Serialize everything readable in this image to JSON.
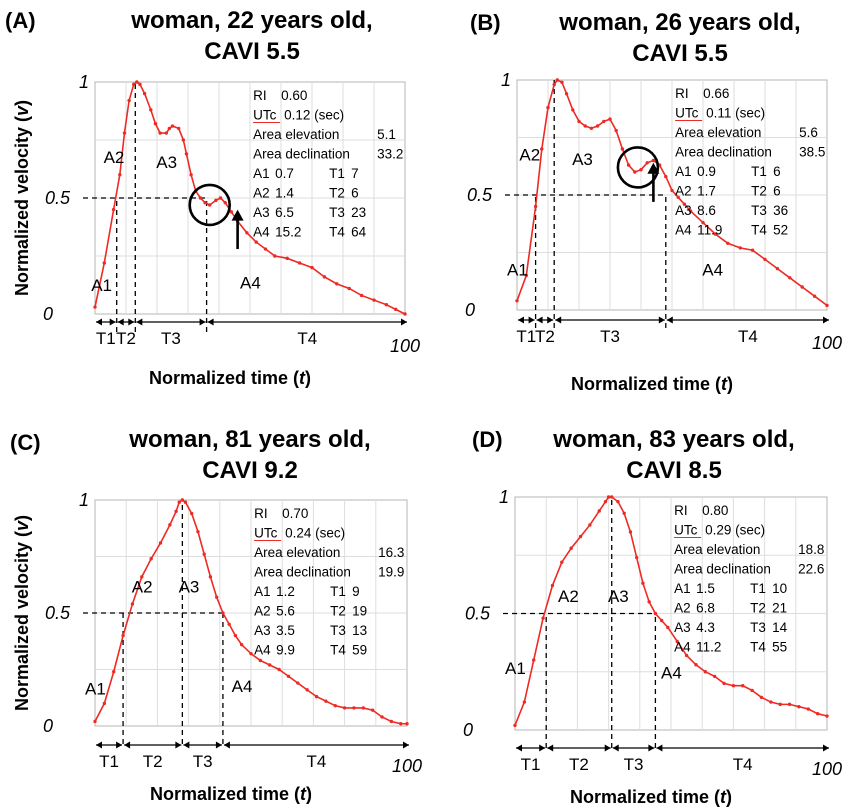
{
  "chart_data": [
    {
      "type": "line",
      "panel_label": "(A)",
      "title": [
        "woman, 22 years old,",
        "CAVI 5.5"
      ],
      "xlabel": "Normalized time",
      "xlabel_var": "t",
      "ylabel": "Normalized velocity",
      "ylabel_var": "v",
      "xlim": [
        0,
        100
      ],
      "ylim": [
        0,
        1
      ],
      "ytick_labels": [
        "0",
        "0.5",
        "1"
      ],
      "xtick_label_end": "100",
      "grid": true,
      "line_color": "#ee2a24",
      "series": [
        {
          "x": [
            0,
            3,
            6,
            8,
            9.5,
            11,
            12.5,
            13.5,
            14.5,
            16,
            18,
            19.5,
            21,
            23,
            24,
            25,
            27,
            28.5,
            29.5,
            31,
            32.5,
            34,
            35.5,
            37,
            39,
            40.5,
            42,
            44,
            46,
            49,
            52,
            55,
            58,
            62,
            66,
            70,
            74,
            78,
            82,
            86,
            90,
            94,
            97,
            100
          ],
          "y": [
            0.03,
            0.22,
            0.45,
            0.6,
            0.78,
            0.92,
            0.99,
            1.0,
            0.99,
            0.95,
            0.88,
            0.82,
            0.78,
            0.78,
            0.8,
            0.81,
            0.8,
            0.75,
            0.69,
            0.6,
            0.53,
            0.5,
            0.48,
            0.47,
            0.49,
            0.5,
            0.48,
            0.44,
            0.4,
            0.35,
            0.31,
            0.28,
            0.25,
            0.24,
            0.22,
            0.2,
            0.16,
            0.13,
            0.11,
            0.08,
            0.06,
            0.04,
            0.02,
            0.0
          ]
        }
      ],
      "info": {
        "RI_label": "RI",
        "RI": "0.60",
        "UTc_label": "UTc",
        "UTc": "0.12 (sec)",
        "elev_label": "Area elevation",
        "elev": "5.1",
        "decl_label": "Area declination",
        "decl": "33.2",
        "A": [
          {
            "l": "A1",
            "v": "0.7"
          },
          {
            "l": "A2",
            "v": "1.4"
          },
          {
            "l": "A3",
            "v": "6.5"
          },
          {
            "l": "A4",
            "v": "15.2"
          }
        ],
        "T": [
          {
            "l": "T1",
            "v": "7"
          },
          {
            "l": "T2",
            "v": "6"
          },
          {
            "l": "T3",
            "v": "23"
          },
          {
            "l": "T4",
            "v": "64"
          }
        ]
      },
      "region_labels": [
        "A1",
        "A2",
        "A3",
        "A4"
      ],
      "t_labels": [
        "T1",
        "T2",
        "T3",
        "T4"
      ],
      "t_boundaries": [
        0,
        7,
        13,
        36,
        100
      ],
      "half_velocity_level": 0.5,
      "peak_time": 13,
      "region_label_pos": [
        [
          2,
          0.1
        ],
        [
          6,
          0.65
        ],
        [
          23,
          0.63
        ],
        [
          50,
          0.11
        ]
      ],
      "marker_circle": {
        "x": 37,
        "y": 0.47
      },
      "marker_arrow": {
        "x": 46,
        "y_from": 0.28,
        "y_to": 0.45
      }
    },
    {
      "type": "line",
      "panel_label": "(B)",
      "title": [
        "woman, 26 years old,",
        "CAVI 5.5"
      ],
      "xlabel": "Normalized time",
      "xlabel_var": "t",
      "ylabel": "",
      "xlim": [
        0,
        100
      ],
      "ylim": [
        0,
        1
      ],
      "ytick_labels": [
        "0",
        "0.5",
        "1"
      ],
      "xtick_label_end": "100",
      "grid": true,
      "line_color": "#ee2a24",
      "series": [
        {
          "x": [
            0,
            3,
            6,
            8,
            10,
            12,
            13,
            14.5,
            16,
            18,
            20,
            22,
            24,
            26,
            28,
            30,
            32,
            34,
            36,
            38,
            40,
            42,
            44,
            46,
            48,
            50,
            52,
            54,
            56,
            60,
            64,
            68,
            72,
            76,
            80,
            84,
            88,
            92,
            96,
            100
          ],
          "y": [
            0.04,
            0.15,
            0.45,
            0.7,
            0.88,
            0.98,
            1.0,
            0.99,
            0.94,
            0.87,
            0.82,
            0.8,
            0.79,
            0.8,
            0.82,
            0.83,
            0.78,
            0.7,
            0.63,
            0.6,
            0.61,
            0.64,
            0.65,
            0.63,
            0.58,
            0.52,
            0.49,
            0.46,
            0.43,
            0.38,
            0.33,
            0.29,
            0.27,
            0.26,
            0.22,
            0.18,
            0.14,
            0.1,
            0.06,
            0.02
          ]
        }
      ],
      "info": {
        "RI_label": "RI",
        "RI": "0.66",
        "UTc_label": "UTc",
        "UTc": "0.11 (sec)",
        "elev_label": "Area elevation",
        "elev": "5.6",
        "decl_label": "Area declination",
        "decl": "38.5",
        "A": [
          {
            "l": "A1",
            "v": "0.9"
          },
          {
            "l": "A2",
            "v": "1.7"
          },
          {
            "l": "A3",
            "v": "8.6"
          },
          {
            "l": "A4",
            "v": "11.9"
          }
        ],
        "T": [
          {
            "l": "T1",
            "v": "6"
          },
          {
            "l": "T2",
            "v": "6"
          },
          {
            "l": "T3",
            "v": "36"
          },
          {
            "l": "T4",
            "v": "52"
          }
        ]
      },
      "region_labels": [
        "A1",
        "A2",
        "A3",
        "A4"
      ],
      "t_labels": [
        "T1",
        "T2",
        "T3",
        "T4"
      ],
      "t_boundaries": [
        0,
        6,
        12,
        48,
        100
      ],
      "half_velocity_level": 0.5,
      "peak_time": 12,
      "region_label_pos": [
        [
          0,
          0.15
        ],
        [
          4,
          0.65
        ],
        [
          21,
          0.63
        ],
        [
          63,
          0.15
        ]
      ],
      "marker_circle": {
        "x": 39,
        "y": 0.62
      },
      "marker_arrow": {
        "x": 44,
        "y_from": 0.47,
        "y_to": 0.64
      }
    },
    {
      "type": "line",
      "panel_label": "(C)",
      "title": [
        "woman, 81 years old,",
        "CAVI 9.2"
      ],
      "xlabel": "Normalized time",
      "xlabel_var": "t",
      "ylabel": "Normalized velocity",
      "ylabel_var": "v",
      "xlim": [
        0,
        100
      ],
      "ylim": [
        0,
        1
      ],
      "ytick_labels": [
        "0",
        "0.5",
        "1"
      ],
      "xtick_label_end": "100",
      "grid": true,
      "line_color": "#ee2a24",
      "series": [
        {
          "x": [
            0,
            3,
            6,
            9,
            12,
            15,
            18,
            21,
            24,
            26,
            27,
            28,
            29,
            31,
            33,
            35,
            37,
            39,
            41,
            43,
            45,
            47,
            50,
            53,
            56,
            59,
            62,
            65,
            68,
            71,
            74,
            77,
            80,
            83,
            86,
            89,
            92,
            95,
            98,
            100
          ],
          "y": [
            0.02,
            0.1,
            0.24,
            0.4,
            0.54,
            0.66,
            0.74,
            0.81,
            0.89,
            0.95,
            0.99,
            1.0,
            0.99,
            0.94,
            0.86,
            0.76,
            0.66,
            0.57,
            0.5,
            0.45,
            0.4,
            0.36,
            0.32,
            0.29,
            0.27,
            0.25,
            0.22,
            0.19,
            0.16,
            0.13,
            0.11,
            0.09,
            0.08,
            0.08,
            0.08,
            0.07,
            0.04,
            0.02,
            0.01,
            0.01
          ]
        }
      ],
      "info": {
        "RI_label": "RI",
        "RI": "0.70",
        "UTc_label": "UTc",
        "UTc": "0.24 (sec)",
        "elev_label": "Area elevation",
        "elev": "16.3",
        "decl_label": "Area declination",
        "decl": "19.9",
        "A": [
          {
            "l": "A1",
            "v": "1.2"
          },
          {
            "l": "A2",
            "v": "5.6"
          },
          {
            "l": "A3",
            "v": "3.5"
          },
          {
            "l": "A4",
            "v": "9.9"
          }
        ],
        "T": [
          {
            "l": "T1",
            "v": "9"
          },
          {
            "l": "T2",
            "v": "19"
          },
          {
            "l": "T3",
            "v": "13"
          },
          {
            "l": "T4",
            "v": "59"
          }
        ]
      },
      "region_labels": [
        "A1",
        "A2",
        "A3",
        "A4"
      ],
      "t_labels": [
        "T1",
        "T2",
        "T3",
        "T4"
      ],
      "t_boundaries": [
        0,
        9,
        28,
        41,
        100
      ],
      "half_velocity_level": 0.5,
      "peak_time": 28,
      "region_label_pos": [
        [
          0,
          0.14
        ],
        [
          15,
          0.59
        ],
        [
          30,
          0.59
        ],
        [
          47,
          0.15
        ]
      ],
      "marker_circle": null,
      "marker_arrow": null
    },
    {
      "type": "line",
      "panel_label": "(D)",
      "title": [
        "woman, 83 years old,",
        "CAVI 8.5"
      ],
      "xlabel": "Normalized time",
      "xlabel_var": "t",
      "ylabel": "",
      "xlim": [
        0,
        100
      ],
      "ylim": [
        0,
        1
      ],
      "ytick_labels": [
        "0",
        "0.5",
        "1"
      ],
      "xtick_label_end": "100",
      "grid": true,
      "line_color": "#ee2a24",
      "series": [
        {
          "x": [
            0,
            3,
            6,
            9,
            12,
            15,
            18,
            21,
            24,
            27,
            29,
            30,
            31,
            33,
            35,
            37,
            39,
            41,
            43,
            45,
            47,
            49,
            52,
            55,
            58,
            61,
            64,
            67,
            70,
            73,
            76,
            79,
            82,
            85,
            88,
            91,
            94,
            97,
            100
          ],
          "y": [
            0.02,
            0.12,
            0.3,
            0.48,
            0.62,
            0.72,
            0.78,
            0.83,
            0.88,
            0.94,
            0.98,
            1.0,
            1.0,
            0.98,
            0.93,
            0.85,
            0.74,
            0.63,
            0.55,
            0.5,
            0.47,
            0.44,
            0.38,
            0.32,
            0.28,
            0.25,
            0.23,
            0.2,
            0.19,
            0.19,
            0.17,
            0.14,
            0.12,
            0.11,
            0.11,
            0.1,
            0.09,
            0.07,
            0.06
          ]
        }
      ],
      "info": {
        "RI_label": "RI",
        "RI": "0.80",
        "UTc_label": "UTc",
        "UTc": "0.29 (sec)",
        "elev_label": "Area elevation",
        "elev": "18.8",
        "decl_label": "Area declination",
        "decl": "22.6",
        "A": [
          {
            "l": "A1",
            "v": "1.5"
          },
          {
            "l": "A2",
            "v": "6.8"
          },
          {
            "l": "A3",
            "v": "4.3"
          },
          {
            "l": "A4",
            "v": "11.2"
          }
        ],
        "T": [
          {
            "l": "T1",
            "v": "10"
          },
          {
            "l": "T2",
            "v": "21"
          },
          {
            "l": "T3",
            "v": "14"
          },
          {
            "l": "T4",
            "v": "55"
          }
        ]
      },
      "region_labels": [
        "A1",
        "A2",
        "A3",
        "A4"
      ],
      "t_labels": [
        "T1",
        "T2",
        "T3",
        "T4"
      ],
      "t_boundaries": [
        0,
        10,
        31,
        45,
        100
      ],
      "half_velocity_level": 0.5,
      "peak_time": 31,
      "region_label_pos": [
        [
          0,
          0.24
        ],
        [
          17,
          0.55
        ],
        [
          33,
          0.55
        ],
        [
          50,
          0.22
        ]
      ],
      "marker_circle": null,
      "marker_arrow": null
    }
  ]
}
